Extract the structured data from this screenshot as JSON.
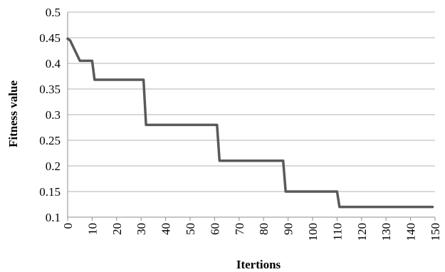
{
  "chart_data": {
    "type": "line",
    "title": "",
    "xlabel": "Itertions",
    "ylabel": "Fitness value",
    "xlim": [
      0,
      150
    ],
    "ylim": [
      0.1,
      0.5
    ],
    "x_ticks": [
      0,
      10,
      20,
      30,
      40,
      50,
      60,
      70,
      80,
      90,
      100,
      110,
      120,
      130,
      140,
      150
    ],
    "y_ticks": [
      "0.1",
      "0.15",
      "0.2",
      "0.25",
      "0.3",
      "0.35",
      "0.4",
      "0.45",
      "0.5"
    ],
    "grid": "horizontal",
    "legend": "none",
    "series": [
      {
        "color": "#595959",
        "x": [
          0,
          1,
          5,
          10,
          11,
          31,
          32,
          61,
          62,
          88,
          89,
          110,
          111,
          149
        ],
        "y": [
          0.448,
          0.445,
          0.405,
          0.405,
          0.368,
          0.368,
          0.28,
          0.28,
          0.21,
          0.21,
          0.15,
          0.15,
          0.12,
          0.12
        ]
      }
    ]
  }
}
